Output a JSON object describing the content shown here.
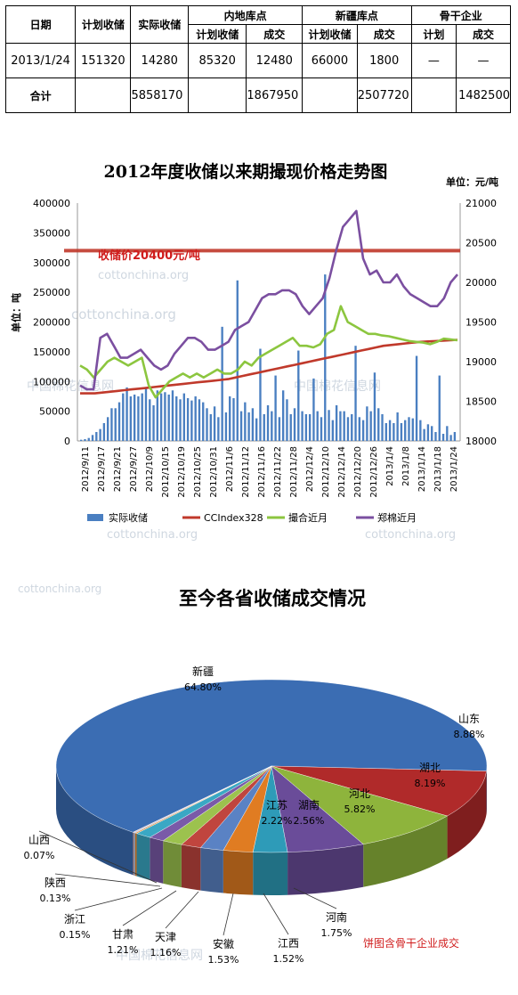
{
  "table": {
    "headers": {
      "date": "日期",
      "plan": "计划收储",
      "actual": "实际收储",
      "inland": "内地库点",
      "xinjiang": "新疆库点",
      "backbone": "骨干企业",
      "sub_plan": "计划收储",
      "sub_deal": "成交",
      "sub_plan2": "计划收储",
      "sub_deal2": "成交",
      "sub_plan3": "计划",
      "sub_deal3": "成交"
    },
    "row": {
      "date": "2013/1/24",
      "plan": "151320",
      "actual": "14280",
      "inland_plan": "85320",
      "inland_deal": "12480",
      "xj_plan": "66000",
      "xj_deal": "1800",
      "bb_plan": "—",
      "bb_deal": "—"
    },
    "total": {
      "label": "合计",
      "actual": "5858170",
      "inland_deal": "1867950",
      "xj_deal": "2507720",
      "bb_deal": "1482500"
    }
  },
  "watermarks": [
    "cottonchina.org",
    "中国棉花信息网"
  ],
  "chart_data": [
    {
      "type": "line",
      "title": "2012年度收储以来期撮现价格走势图",
      "unit_right": "单位：元/吨",
      "ylabel_left": "单位：吨",
      "annotation": "收储价20400元/吨",
      "annotation_value": 20400,
      "x_ticks": [
        "2012/9/11",
        "2012/9/17",
        "2012/9/21",
        "2012/9/27",
        "2012/10/9",
        "2012/10/15",
        "2012/10/19",
        "2012/10/25",
        "2012/10/31",
        "2012/11/6",
        "2012/11/12",
        "2012/11/16",
        "2012/11/22",
        "2012/11/28",
        "2012/12/4",
        "2012/12/10",
        "2012/12/14",
        "2012/12/20",
        "2012/12/26",
        "2013/1/4",
        "2013/1/8",
        "2013/1/14",
        "2013/1/18",
        "2013/1/24"
      ],
      "y_left_ticks": [
        "0",
        "50000",
        "100000",
        "150000",
        "200000",
        "250000",
        "300000",
        "350000",
        "400000"
      ],
      "y_left_range": [
        0,
        400000
      ],
      "y_right_ticks": [
        "18000",
        "18500",
        "19000",
        "19500",
        "20000",
        "20500",
        "21000"
      ],
      "y_right_range": [
        18000,
        21000
      ],
      "legend": [
        "实际收储",
        "CCIndex328",
        "撮合近月",
        "郑棉近月"
      ],
      "series": [
        {
          "name": "实际收储",
          "axis": "left",
          "color": "#4a7fc1",
          "style": "bar",
          "values": [
            2000,
            3000,
            5000,
            10000,
            15000,
            20000,
            30000,
            40000,
            55000,
            55000,
            65000,
            80000,
            90000,
            75000,
            78000,
            75000,
            80000,
            88000,
            70000,
            60000,
            85000,
            80000,
            82000,
            78000,
            85000,
            75000,
            70000,
            80000,
            72000,
            68000,
            75000,
            70000,
            65000,
            55000,
            45000,
            58000,
            40000,
            192000,
            48000,
            75000,
            72000,
            270000,
            50000,
            65000,
            48000,
            55000,
            38000,
            155000,
            45000,
            60000,
            50000,
            110000,
            40000,
            85000,
            70000,
            45000,
            55000,
            152000,
            50000,
            45000,
            45000,
            105000,
            50000,
            40000,
            280000,
            52000,
            35000,
            60000,
            50000,
            50000,
            40000,
            45000,
            160000,
            40000,
            35000,
            58000,
            50000,
            115000,
            55000,
            45000,
            30000,
            35000,
            30000,
            48000,
            30000,
            35000,
            40000,
            38000,
            143000,
            35000,
            20000,
            28000,
            25000,
            15000,
            110000,
            12000,
            25000,
            10000,
            15000
          ]
        },
        {
          "name": "CCIndex328",
          "axis": "right",
          "color": "#c0392b",
          "values": [
            18600,
            18600,
            18600,
            18610,
            18620,
            18630,
            18640,
            18650,
            18660,
            18670,
            18680,
            18690,
            18700,
            18710,
            18720,
            18730,
            18740,
            18750,
            18760,
            18770,
            18780,
            18800,
            18820,
            18840,
            18860,
            18880,
            18900,
            18920,
            18940,
            18960,
            18980,
            19000,
            19020,
            19040,
            19060,
            19080,
            19100,
            19120,
            19140,
            19160,
            19180,
            19200,
            19210,
            19220,
            19230,
            19240,
            19250,
            19255,
            19260,
            19265,
            19270,
            19275
          ]
        },
        {
          "name": "撮合近月",
          "axis": "right",
          "color": "#8cc63f",
          "values": [
            18950,
            18900,
            18800,
            18900,
            19000,
            19050,
            19000,
            18950,
            19000,
            19050,
            18700,
            18550,
            18650,
            18750,
            18800,
            18850,
            18800,
            18850,
            18800,
            18850,
            18900,
            18850,
            18850,
            18900,
            19000,
            18950,
            19050,
            19100,
            19150,
            19200,
            19250,
            19300,
            19200,
            19200,
            19180,
            19220,
            19350,
            19400,
            19700,
            19500,
            19450,
            19400,
            19350,
            19350,
            19330,
            19320,
            19300,
            19280,
            19260,
            19250,
            19240,
            19220,
            19250,
            19290,
            19280,
            19270
          ]
        },
        {
          "name": "郑棉近月",
          "axis": "right",
          "color": "#7b4fa0",
          "values": [
            18700,
            18650,
            18650,
            19300,
            19350,
            19200,
            19050,
            19050,
            19100,
            19150,
            19050,
            18950,
            18900,
            18950,
            19100,
            19200,
            19300,
            19300,
            19250,
            19150,
            19150,
            19200,
            19250,
            19400,
            19450,
            19500,
            19650,
            19800,
            19850,
            19850,
            19900,
            19900,
            19850,
            19700,
            19600,
            19700,
            19800,
            20050,
            20400,
            20700,
            20800,
            20900,
            20300,
            20100,
            20150,
            20000,
            20000,
            20100,
            19950,
            19850,
            19800,
            19750,
            19700,
            19700,
            19800,
            20000,
            20100
          ]
        }
      ]
    },
    {
      "type": "pie",
      "title": "至今各省收储成交情况",
      "note": "饼图含骨干企业成交",
      "slices": [
        {
          "label": "新疆",
          "value": 64.8,
          "display": "64.80%",
          "color": "#3b6db3"
        },
        {
          "label": "山东",
          "value": 8.88,
          "display": "8.88%",
          "color": "#b02a2a"
        },
        {
          "label": "湖北",
          "value": 8.19,
          "display": "8.19%",
          "color": "#8eb43c"
        },
        {
          "label": "河北",
          "value": 5.82,
          "display": "5.82%",
          "color": "#6a4c99"
        },
        {
          "label": "湖南",
          "value": 2.56,
          "display": "2.56%",
          "color": "#2e9bb8"
        },
        {
          "label": "江苏",
          "value": 2.22,
          "display": "2.22%",
          "color": "#e07c22"
        },
        {
          "label": "河南",
          "value": 1.75,
          "display": "1.75%",
          "color": "#5a82c4"
        },
        {
          "label": "江西",
          "value": 1.52,
          "display": "1.52%",
          "color": "#c0453e"
        },
        {
          "label": "安徽",
          "value": 1.53,
          "display": "1.53%",
          "color": "#9cc24e"
        },
        {
          "label": "天津",
          "value": 1.16,
          "display": "1.16%",
          "color": "#7a5aa8"
        },
        {
          "label": "甘肃",
          "value": 1.21,
          "display": "1.21%",
          "color": "#3aa8c4"
        },
        {
          "label": "浙江",
          "value": 0.15,
          "display": "0.15%",
          "color": "#f08a2a"
        },
        {
          "label": "陕西",
          "value": 0.13,
          "display": "0.13%",
          "color": "#a0b8dc"
        },
        {
          "label": "山西",
          "value": 0.07,
          "display": "0.07%",
          "color": "#dc9090"
        }
      ]
    }
  ]
}
